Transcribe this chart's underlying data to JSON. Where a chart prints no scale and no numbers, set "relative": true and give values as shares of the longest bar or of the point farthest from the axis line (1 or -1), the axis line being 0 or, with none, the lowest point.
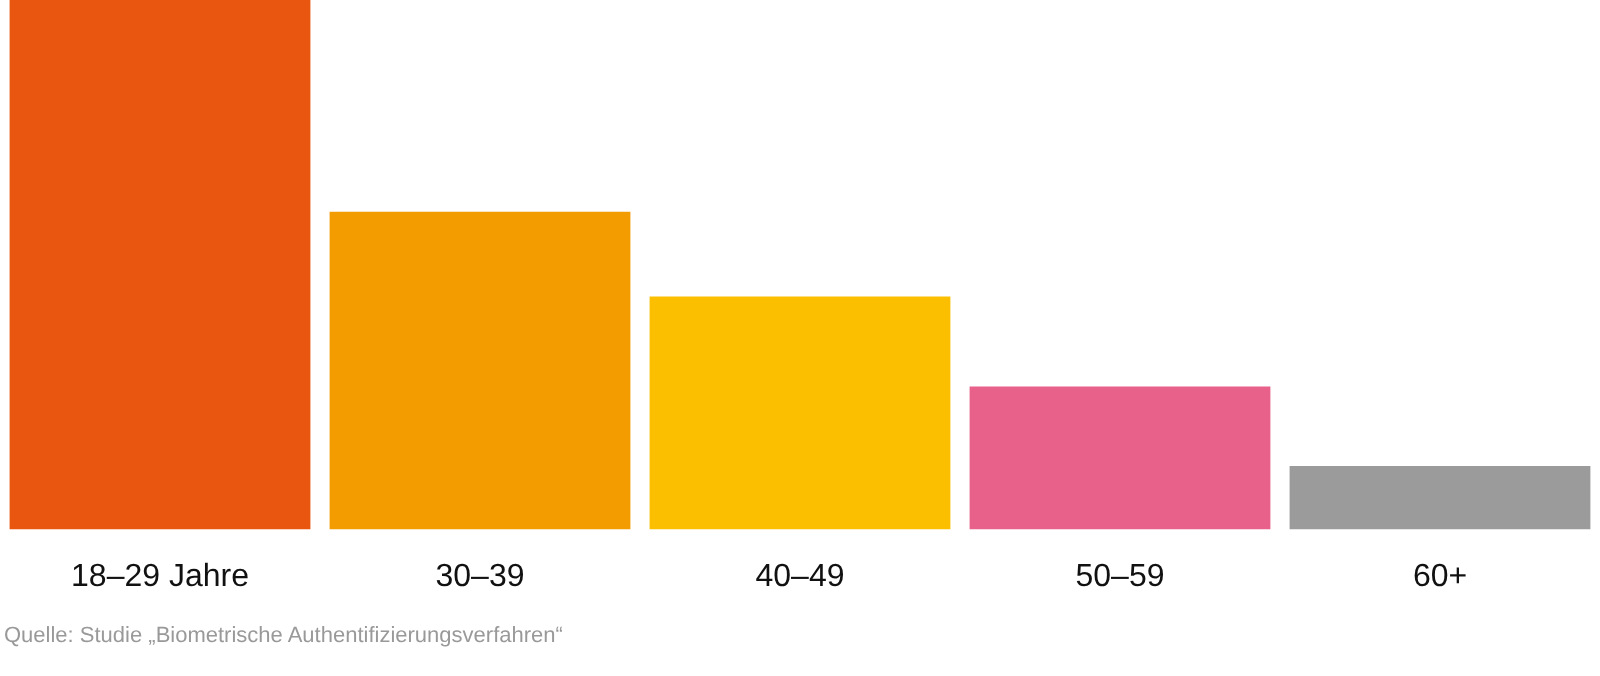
{
  "chart_data": {
    "type": "bar",
    "relative": true,
    "categories": [
      "18–29 Jahre",
      "30–39",
      "40–49",
      "50–59",
      "60+"
    ],
    "values": [
      1,
      0.6,
      0.44,
      0.27,
      0.12
    ],
    "colors": [
      "#e8560f",
      "#f39c00",
      "#fbbf00",
      "#e8618a",
      "#9b9b9b"
    ],
    "grid": false,
    "legend": false,
    "annotations": [
      "Quelle: Studie „Biometrische Authentifizierungsverfahren“"
    ]
  }
}
